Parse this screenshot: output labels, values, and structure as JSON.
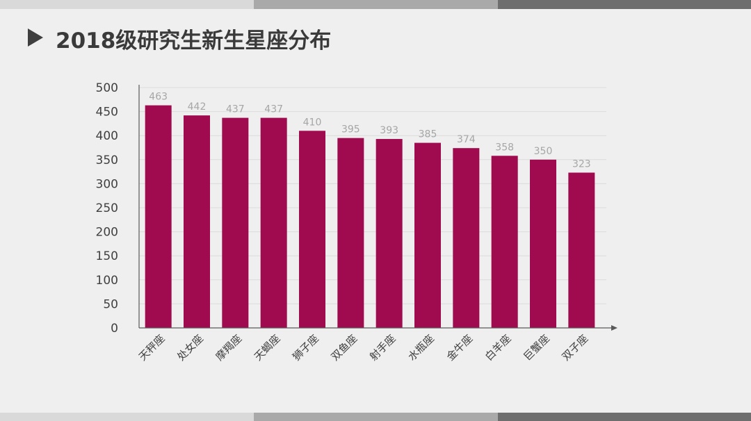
{
  "page": {
    "title": "2018级研究生新生星座分布"
  },
  "colors": {
    "bar": "#a00a4e",
    "label": "#a6a6a6",
    "axis": "#595959",
    "grid": "#dcdcdc",
    "tick_text": "#404040"
  },
  "chart_data": {
    "type": "bar",
    "title": "",
    "xlabel": "",
    "ylabel": "",
    "ylim": [
      0,
      500
    ],
    "yticks": [
      0,
      50,
      100,
      150,
      200,
      250,
      300,
      350,
      400,
      450,
      500
    ],
    "grid": true,
    "legend": "none",
    "categories": [
      "天秤座",
      "处女座",
      "摩羯座",
      "天蝎座",
      "狮子座",
      "双鱼座",
      "射手座",
      "水瓶座",
      "金牛座",
      "白羊座",
      "巨蟹座",
      "双子座"
    ],
    "values": [
      463,
      442,
      437,
      437,
      410,
      395,
      393,
      385,
      374,
      358,
      350,
      323
    ]
  }
}
